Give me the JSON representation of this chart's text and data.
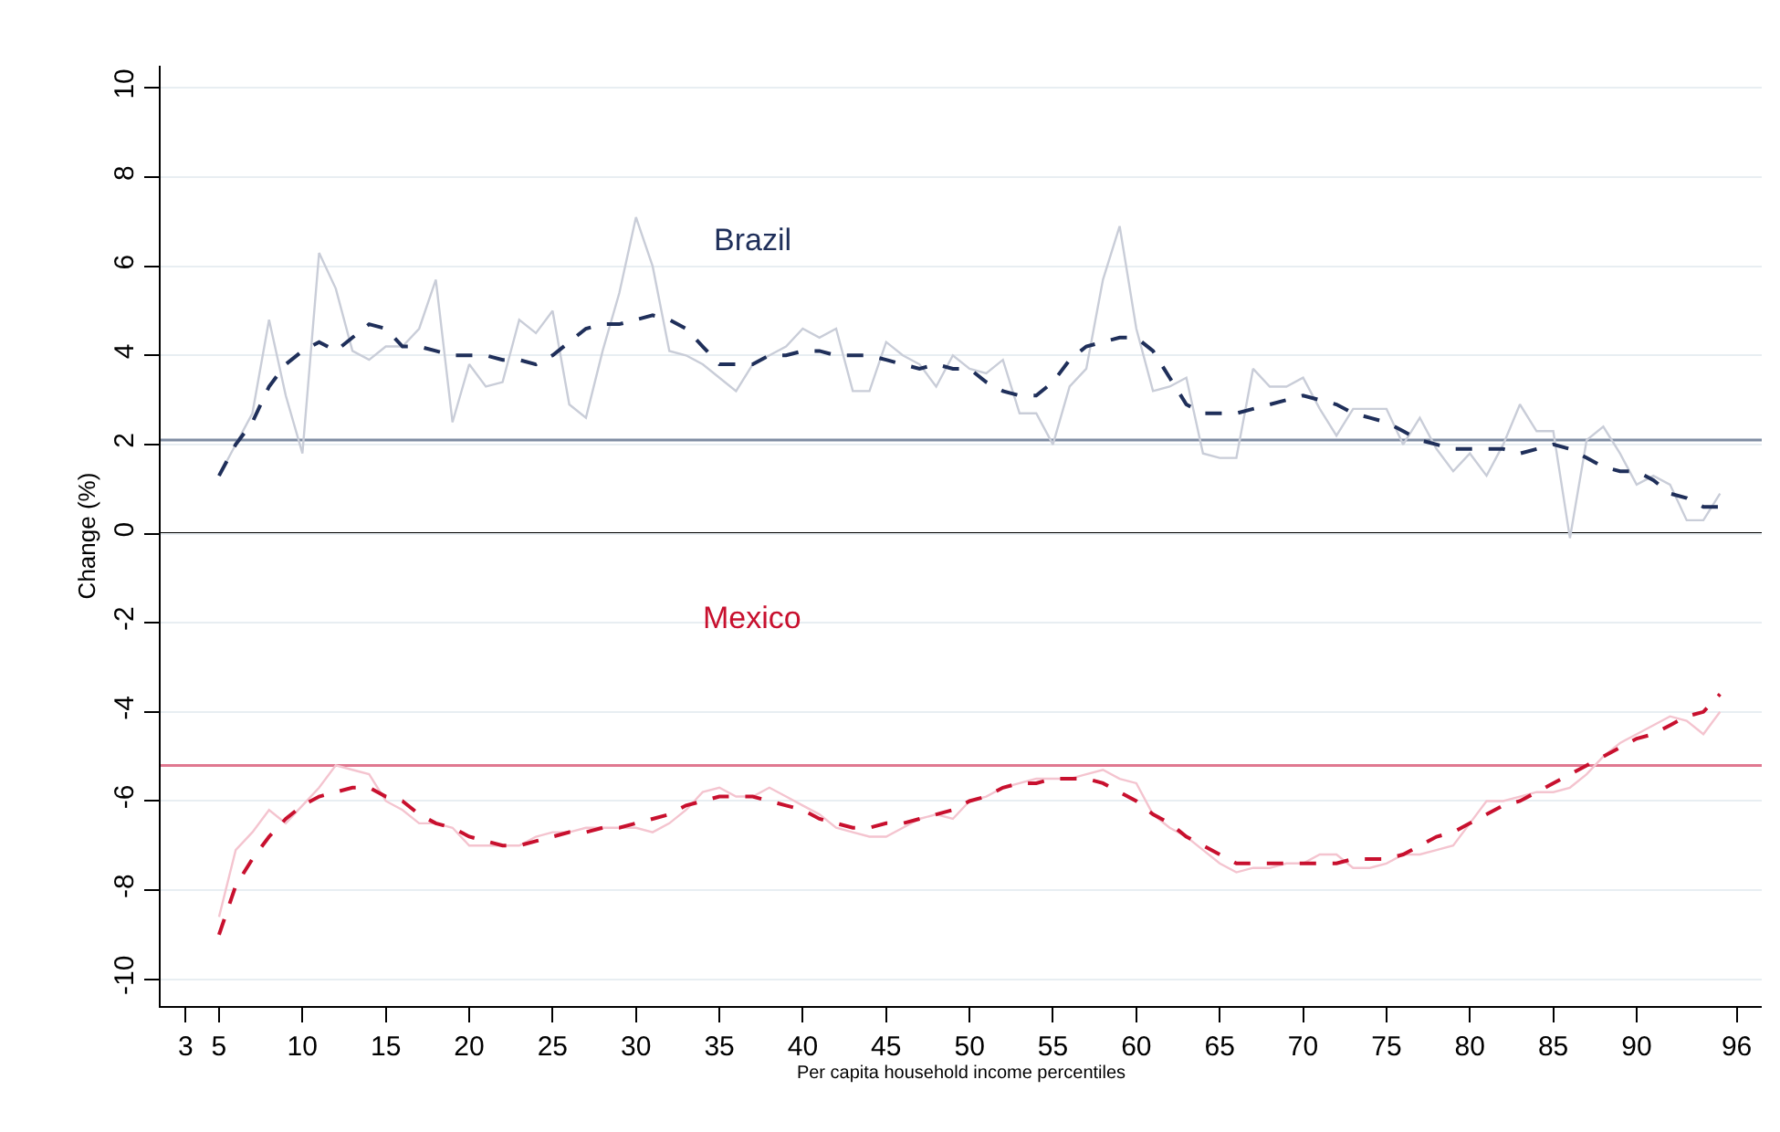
{
  "chart_data": {
    "type": "line",
    "xlabel": "Per capita household income percentiles",
    "ylabel": "Change (%)",
    "x": [
      5,
      6,
      7,
      8,
      9,
      10,
      11,
      12,
      13,
      14,
      15,
      16,
      17,
      18,
      19,
      20,
      21,
      22,
      23,
      24,
      25,
      26,
      27,
      28,
      29,
      30,
      31,
      32,
      33,
      34,
      35,
      36,
      37,
      38,
      39,
      40,
      41,
      42,
      43,
      44,
      45,
      46,
      47,
      48,
      49,
      50,
      51,
      52,
      53,
      54,
      55,
      56,
      57,
      58,
      59,
      60,
      61,
      62,
      63,
      64,
      65,
      66,
      67,
      68,
      69,
      70,
      71,
      72,
      73,
      74,
      75,
      76,
      77,
      78,
      79,
      80,
      81,
      82,
      83,
      84,
      85,
      86,
      87,
      88,
      89,
      90,
      91,
      92,
      93,
      94,
      95
    ],
    "xlim": [
      1.5,
      97.5
    ],
    "xticks": [
      3,
      5,
      10,
      15,
      20,
      25,
      30,
      35,
      40,
      45,
      50,
      55,
      60,
      65,
      70,
      75,
      80,
      85,
      90,
      96
    ],
    "ylim": [
      -10.6,
      10.5
    ],
    "yticks": [
      -10,
      -8,
      -6,
      -4,
      -2,
      0,
      2,
      4,
      6,
      8,
      10
    ],
    "grid": "y",
    "legend": false,
    "marker": "none",
    "series": [
      {
        "color": "#c9cdd8",
        "line_style": "solid",
        "values": [
          1.3,
          2.0,
          2.7,
          4.8,
          3.1,
          1.8,
          6.3,
          5.5,
          4.1,
          3.9,
          4.2,
          4.2,
          4.6,
          5.7,
          2.5,
          3.8,
          3.3,
          3.4,
          4.8,
          4.5,
          5.0,
          2.9,
          2.6,
          4.1,
          5.4,
          7.1,
          6.0,
          4.1,
          4.0,
          3.8,
          3.5,
          3.2,
          3.8,
          4.0,
          4.2,
          4.6,
          4.4,
          4.6,
          3.2,
          3.2,
          4.3,
          4.0,
          3.8,
          3.3,
          4.0,
          3.7,
          3.6,
          3.9,
          2.7,
          2.7,
          2.0,
          3.3,
          3.7,
          5.7,
          6.9,
          4.6,
          3.2,
          3.3,
          3.5,
          1.8,
          1.7,
          1.7,
          3.7,
          3.3,
          3.3,
          3.5,
          2.8,
          2.2,
          2.8,
          2.8,
          2.8,
          2.0,
          2.6,
          1.9,
          1.4,
          1.8,
          1.3,
          2.0,
          2.9,
          2.3,
          2.3,
          -0.1,
          2.1,
          2.4,
          1.8,
          1.1,
          1.3,
          1.1,
          0.3,
          0.3,
          0.9
        ]
      },
      {
        "name": "Brazil",
        "color": "#1f2f5a",
        "line_style": "dashed",
        "values": [
          1.3,
          2.0,
          2.5,
          3.3,
          3.8,
          4.1,
          4.3,
          4.1,
          4.4,
          4.7,
          4.6,
          4.2,
          4.2,
          4.1,
          4.0,
          4.0,
          4.0,
          3.9,
          3.9,
          3.8,
          4.0,
          4.3,
          4.6,
          4.7,
          4.7,
          4.8,
          4.9,
          4.8,
          4.6,
          4.2,
          3.8,
          3.8,
          3.8,
          4.0,
          4.0,
          4.1,
          4.1,
          4.0,
          4.0,
          4.0,
          3.9,
          3.8,
          3.7,
          3.8,
          3.7,
          3.7,
          3.4,
          3.2,
          3.1,
          3.1,
          3.4,
          3.9,
          4.2,
          4.3,
          4.4,
          4.4,
          4.1,
          3.5,
          2.9,
          2.7,
          2.7,
          2.7,
          2.8,
          2.9,
          3.0,
          3.1,
          3.0,
          2.9,
          2.7,
          2.6,
          2.5,
          2.3,
          2.1,
          2.0,
          1.9,
          1.9,
          1.9,
          1.9,
          1.8,
          1.9,
          2.0,
          1.9,
          1.7,
          1.5,
          1.4,
          1.4,
          1.2,
          0.9,
          0.8,
          0.6,
          0.6
        ]
      },
      {
        "color": "#f4c4cf",
        "line_style": "solid",
        "values": [
          -8.6,
          -7.1,
          -6.7,
          -6.2,
          -6.5,
          -6.1,
          -5.7,
          -5.2,
          -5.3,
          -5.4,
          -6.0,
          -6.2,
          -6.5,
          -6.5,
          -6.6,
          -7.0,
          -7.0,
          -7.0,
          -7.0,
          -6.8,
          -6.7,
          -6.7,
          -6.6,
          -6.6,
          -6.6,
          -6.6,
          -6.7,
          -6.5,
          -6.2,
          -5.8,
          -5.7,
          -5.9,
          -5.9,
          -5.7,
          -5.9,
          -6.1,
          -6.3,
          -6.6,
          -6.7,
          -6.8,
          -6.8,
          -6.6,
          -6.4,
          -6.3,
          -6.4,
          -6.0,
          -5.9,
          -5.7,
          -5.6,
          -5.5,
          -5.5,
          -5.5,
          -5.4,
          -5.3,
          -5.5,
          -5.6,
          -6.3,
          -6.6,
          -6.8,
          -7.1,
          -7.4,
          -7.6,
          -7.5,
          -7.5,
          -7.4,
          -7.4,
          -7.2,
          -7.2,
          -7.5,
          -7.5,
          -7.4,
          -7.2,
          -7.2,
          -7.1,
          -7.0,
          -6.5,
          -6.0,
          -6.0,
          -5.9,
          -5.8,
          -5.8,
          -5.7,
          -5.4,
          -5.0,
          -4.7,
          -4.5,
          -4.3,
          -4.1,
          -4.2,
          -4.5,
          -4.0
        ]
      },
      {
        "name": "Mexico",
        "color": "#c8102e",
        "line_style": "dashed",
        "values": [
          -9.0,
          -7.9,
          -7.3,
          -6.8,
          -6.4,
          -6.1,
          -5.9,
          -5.8,
          -5.7,
          -5.7,
          -5.9,
          -6.0,
          -6.3,
          -6.5,
          -6.6,
          -6.8,
          -6.9,
          -7.0,
          -7.0,
          -6.9,
          -6.8,
          -6.7,
          -6.7,
          -6.6,
          -6.6,
          -6.5,
          -6.4,
          -6.3,
          -6.1,
          -6.0,
          -5.9,
          -5.9,
          -5.9,
          -6.0,
          -6.1,
          -6.2,
          -6.4,
          -6.5,
          -6.6,
          -6.6,
          -6.5,
          -6.5,
          -6.4,
          -6.3,
          -6.2,
          -6.0,
          -5.9,
          -5.7,
          -5.6,
          -5.6,
          -5.5,
          -5.5,
          -5.5,
          -5.6,
          -5.8,
          -6.0,
          -6.3,
          -6.5,
          -6.8,
          -7.0,
          -7.2,
          -7.4,
          -7.4,
          -7.4,
          -7.4,
          -7.4,
          -7.4,
          -7.4,
          -7.3,
          -7.3,
          -7.3,
          -7.2,
          -7.0,
          -6.8,
          -6.7,
          -6.5,
          -6.3,
          -6.1,
          -6.0,
          -5.8,
          -5.6,
          -5.4,
          -5.2,
          -5.0,
          -4.8,
          -4.6,
          -4.5,
          -4.3,
          -4.1,
          -4.0,
          -3.6
        ]
      }
    ],
    "ref_lines": [
      {
        "axis": "y",
        "value": 0,
        "color": "#000000",
        "line_style": "solid"
      },
      {
        "axis": "y",
        "value": 2.1,
        "color": "#7f8ca3",
        "line_style": "solid"
      },
      {
        "axis": "y",
        "value": -5.2,
        "color": "#e07890",
        "line_style": "solid"
      }
    ]
  }
}
